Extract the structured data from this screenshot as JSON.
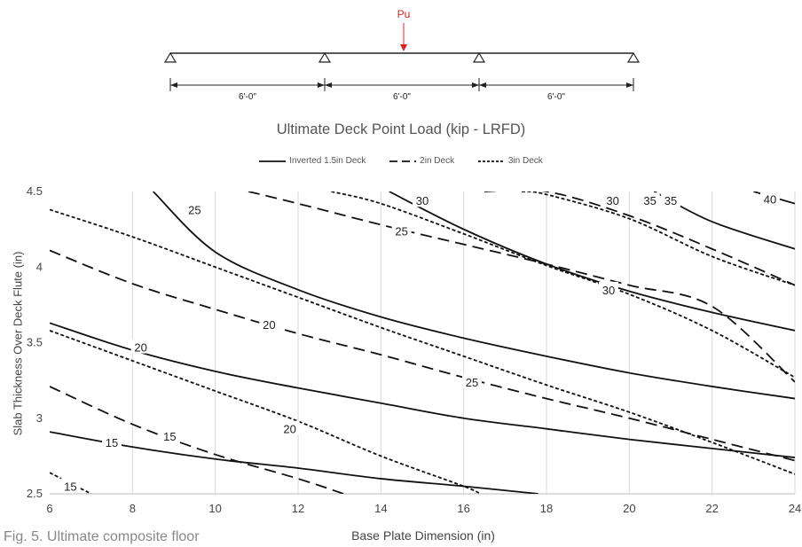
{
  "beam": {
    "load_label": "Pu",
    "span_labels": [
      "6'-0\"",
      "6'-0\"",
      "6'-0\""
    ],
    "load_color": "#e02020"
  },
  "caption": "Fig. 5. Ultimate composite floor",
  "chart_data": {
    "type": "line",
    "title": "Ultimate Deck Point Load (kip - LRFD)",
    "xlabel": "Base Plate Dimension (in)",
    "ylabel": "Slab Thickness Over Deck Flute (in)",
    "xlim": [
      6,
      24
    ],
    "ylim": [
      2.5,
      4.5
    ],
    "xticks": [
      6,
      8,
      10,
      12,
      14,
      16,
      18,
      20,
      22,
      24
    ],
    "yticks": [
      2.5,
      3,
      3.5,
      4,
      4.5
    ],
    "grid": "vertical",
    "legend_position": "top-center",
    "series": [
      {
        "name": "Inverted 1.5in Deck",
        "style": "solid",
        "curves": [
          {
            "label": "15",
            "label_at": [
              7.5,
              2.84
            ],
            "points": [
              [
                6,
                2.91
              ],
              [
                8,
                2.81
              ],
              [
                10,
                2.73
              ],
              [
                12,
                2.67
              ],
              [
                14,
                2.6
              ],
              [
                16,
                2.55
              ],
              [
                17.8,
                2.5
              ]
            ]
          },
          {
            "label": "20",
            "label_at": [
              8.2,
              3.47
            ],
            "points": [
              [
                6,
                3.63
              ],
              [
                8,
                3.45
              ],
              [
                10,
                3.31
              ],
              [
                12,
                3.2
              ],
              [
                14,
                3.1
              ],
              [
                16,
                3.0
              ],
              [
                18,
                2.93
              ],
              [
                20,
                2.86
              ],
              [
                22,
                2.8
              ],
              [
                24,
                2.74
              ]
            ]
          },
          {
            "label": "25",
            "label_at": [
              9.5,
              4.38
            ],
            "points": [
              [
                8.5,
                4.5
              ],
              [
                10,
                4.1
              ],
              [
                12,
                3.85
              ],
              [
                14,
                3.67
              ],
              [
                16,
                3.53
              ],
              [
                18,
                3.41
              ],
              [
                20,
                3.3
              ],
              [
                22,
                3.21
              ],
              [
                24,
                3.13
              ]
            ]
          },
          {
            "label": "30",
            "label_at": [
              15,
              4.44
            ],
            "points": [
              [
                14.2,
                4.5
              ],
              [
                16,
                4.25
              ],
              [
                18,
                4.02
              ],
              [
                20,
                3.84
              ],
              [
                22,
                3.7
              ],
              [
                24,
                3.58
              ]
            ]
          },
          {
            "label": "35",
            "label_at": [
              21,
              4.44
            ],
            "points": [
              [
                20.6,
                4.5
              ],
              [
                22,
                4.3
              ],
              [
                24,
                4.12
              ]
            ]
          },
          {
            "label": "40",
            "label_at": [
              23.4,
              4.45
            ],
            "points": [
              [
                23,
                4.5
              ],
              [
                24,
                4.42
              ]
            ]
          }
        ]
      },
      {
        "name": "2in Deck",
        "style": "dashed",
        "curves": [
          {
            "label": "15",
            "label_at": [
              8.9,
              2.88
            ],
            "points": [
              [
                6,
                3.21
              ],
              [
                8,
                2.96
              ],
              [
                10,
                2.76
              ],
              [
                12,
                2.6
              ],
              [
                13.1,
                2.5
              ]
            ]
          },
          {
            "label": "20",
            "label_at": [
              11.3,
              3.62
            ],
            "points": [
              [
                6,
                4.11
              ],
              [
                8,
                3.89
              ],
              [
                10,
                3.72
              ],
              [
                12,
                3.56
              ],
              [
                14,
                3.42
              ],
              [
                16,
                3.27
              ],
              [
                18,
                3.13
              ],
              [
                20,
                3.0
              ],
              [
                22,
                2.86
              ],
              [
                24,
                2.72
              ]
            ]
          },
          {
            "label": "25",
            "label_at": [
              14.5,
              4.24
            ],
            "points": [
              [
                10.8,
                4.5
              ],
              [
                12,
                4.42
              ],
              [
                14,
                4.28
              ],
              [
                16,
                4.15
              ],
              [
                18,
                4.02
              ],
              [
                20,
                3.88
              ],
              [
                22,
                3.74
              ],
              [
                24,
                3.24
              ]
            ]
          },
          {
            "label": "30",
            "label_at": [
              19.6,
              4.44
            ],
            "points": [
              [
                16.5,
                4.5
              ],
              [
                18,
                4.5
              ],
              [
                20,
                4.34
              ],
              [
                22,
                4.12
              ],
              [
                24,
                3.88
              ]
            ]
          }
        ]
      },
      {
        "name": "3in Deck",
        "style": "dotted",
        "curves": [
          {
            "label": "15",
            "label_at": [
              6.5,
              2.55
            ],
            "points": [
              [
                6,
                2.64
              ],
              [
                7,
                2.5
              ]
            ]
          },
          {
            "label": "20",
            "label_at": [
              11.8,
              2.93
            ],
            "points": [
              [
                6,
                3.58
              ],
              [
                8,
                3.38
              ],
              [
                10,
                3.18
              ],
              [
                12,
                2.98
              ],
              [
                14,
                2.75
              ],
              [
                16,
                2.55
              ],
              [
                16.4,
                2.5
              ]
            ]
          },
          {
            "label": "25",
            "label_at": [
              16.2,
              3.24
            ],
            "points": [
              [
                6,
                4.38
              ],
              [
                8,
                4.2
              ],
              [
                10,
                4.0
              ],
              [
                12,
                3.8
              ],
              [
                14,
                3.6
              ],
              [
                16,
                3.41
              ],
              [
                18,
                3.22
              ],
              [
                20,
                3.04
              ],
              [
                22,
                2.84
              ],
              [
                24,
                2.63
              ]
            ]
          },
          {
            "label": "30",
            "label_at": [
              19.5,
              3.85
            ],
            "points": [
              [
                12.8,
                4.5
              ],
              [
                14,
                4.42
              ],
              [
                16,
                4.22
              ],
              [
                18,
                4.01
              ],
              [
                20,
                3.82
              ],
              [
                22,
                3.58
              ],
              [
                24,
                3.27
              ]
            ]
          },
          {
            "label": "35",
            "label_at": [
              20.5,
              4.44
            ],
            "points": [
              [
                17.4,
                4.5
              ],
              [
                18,
                4.48
              ],
              [
                20,
                4.32
              ],
              [
                22,
                4.07
              ],
              [
                24,
                3.88
              ]
            ]
          }
        ]
      }
    ]
  }
}
